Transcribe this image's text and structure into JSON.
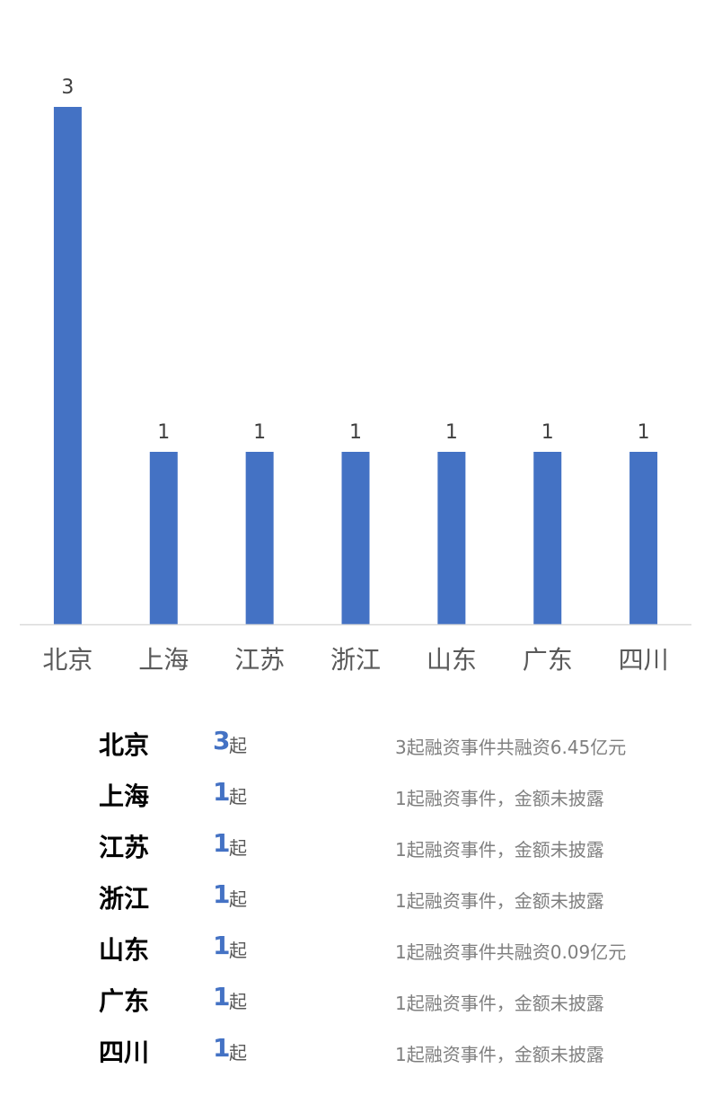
{
  "chart_data": {
    "type": "bar",
    "categories": [
      "北京",
      "上海",
      "江苏",
      "浙江",
      "山东",
      "广东",
      "四川"
    ],
    "values": [
      3,
      1,
      1,
      1,
      1,
      1,
      1
    ],
    "data_labels": [
      "3",
      "1",
      "1",
      "1",
      "1",
      "1",
      "1"
    ],
    "title": "",
    "xlabel": "",
    "ylabel": "",
    "ylim": [
      0,
      3
    ],
    "grid": false,
    "legend": "none",
    "bar_color": "#4472c4",
    "axis_color": "#d9d9d9"
  },
  "table": {
    "unit": "起",
    "rows": [
      {
        "province": "北京",
        "count": "3",
        "desc": "3起融资事件共融资6.45亿元"
      },
      {
        "province": "上海",
        "count": "1",
        "desc": "1起融资事件，金额未披露"
      },
      {
        "province": "江苏",
        "count": "1",
        "desc": "1起融资事件，金额未披露"
      },
      {
        "province": "浙江",
        "count": "1",
        "desc": "1起融资事件，金额未披露"
      },
      {
        "province": "山东",
        "count": "1",
        "desc": "1起融资事件共融资0.09亿元"
      },
      {
        "province": "广东",
        "count": "1",
        "desc": "1起融资事件，金额未披露"
      },
      {
        "province": "四川",
        "count": "1",
        "desc": "1起融资事件，金额未披露"
      }
    ]
  }
}
